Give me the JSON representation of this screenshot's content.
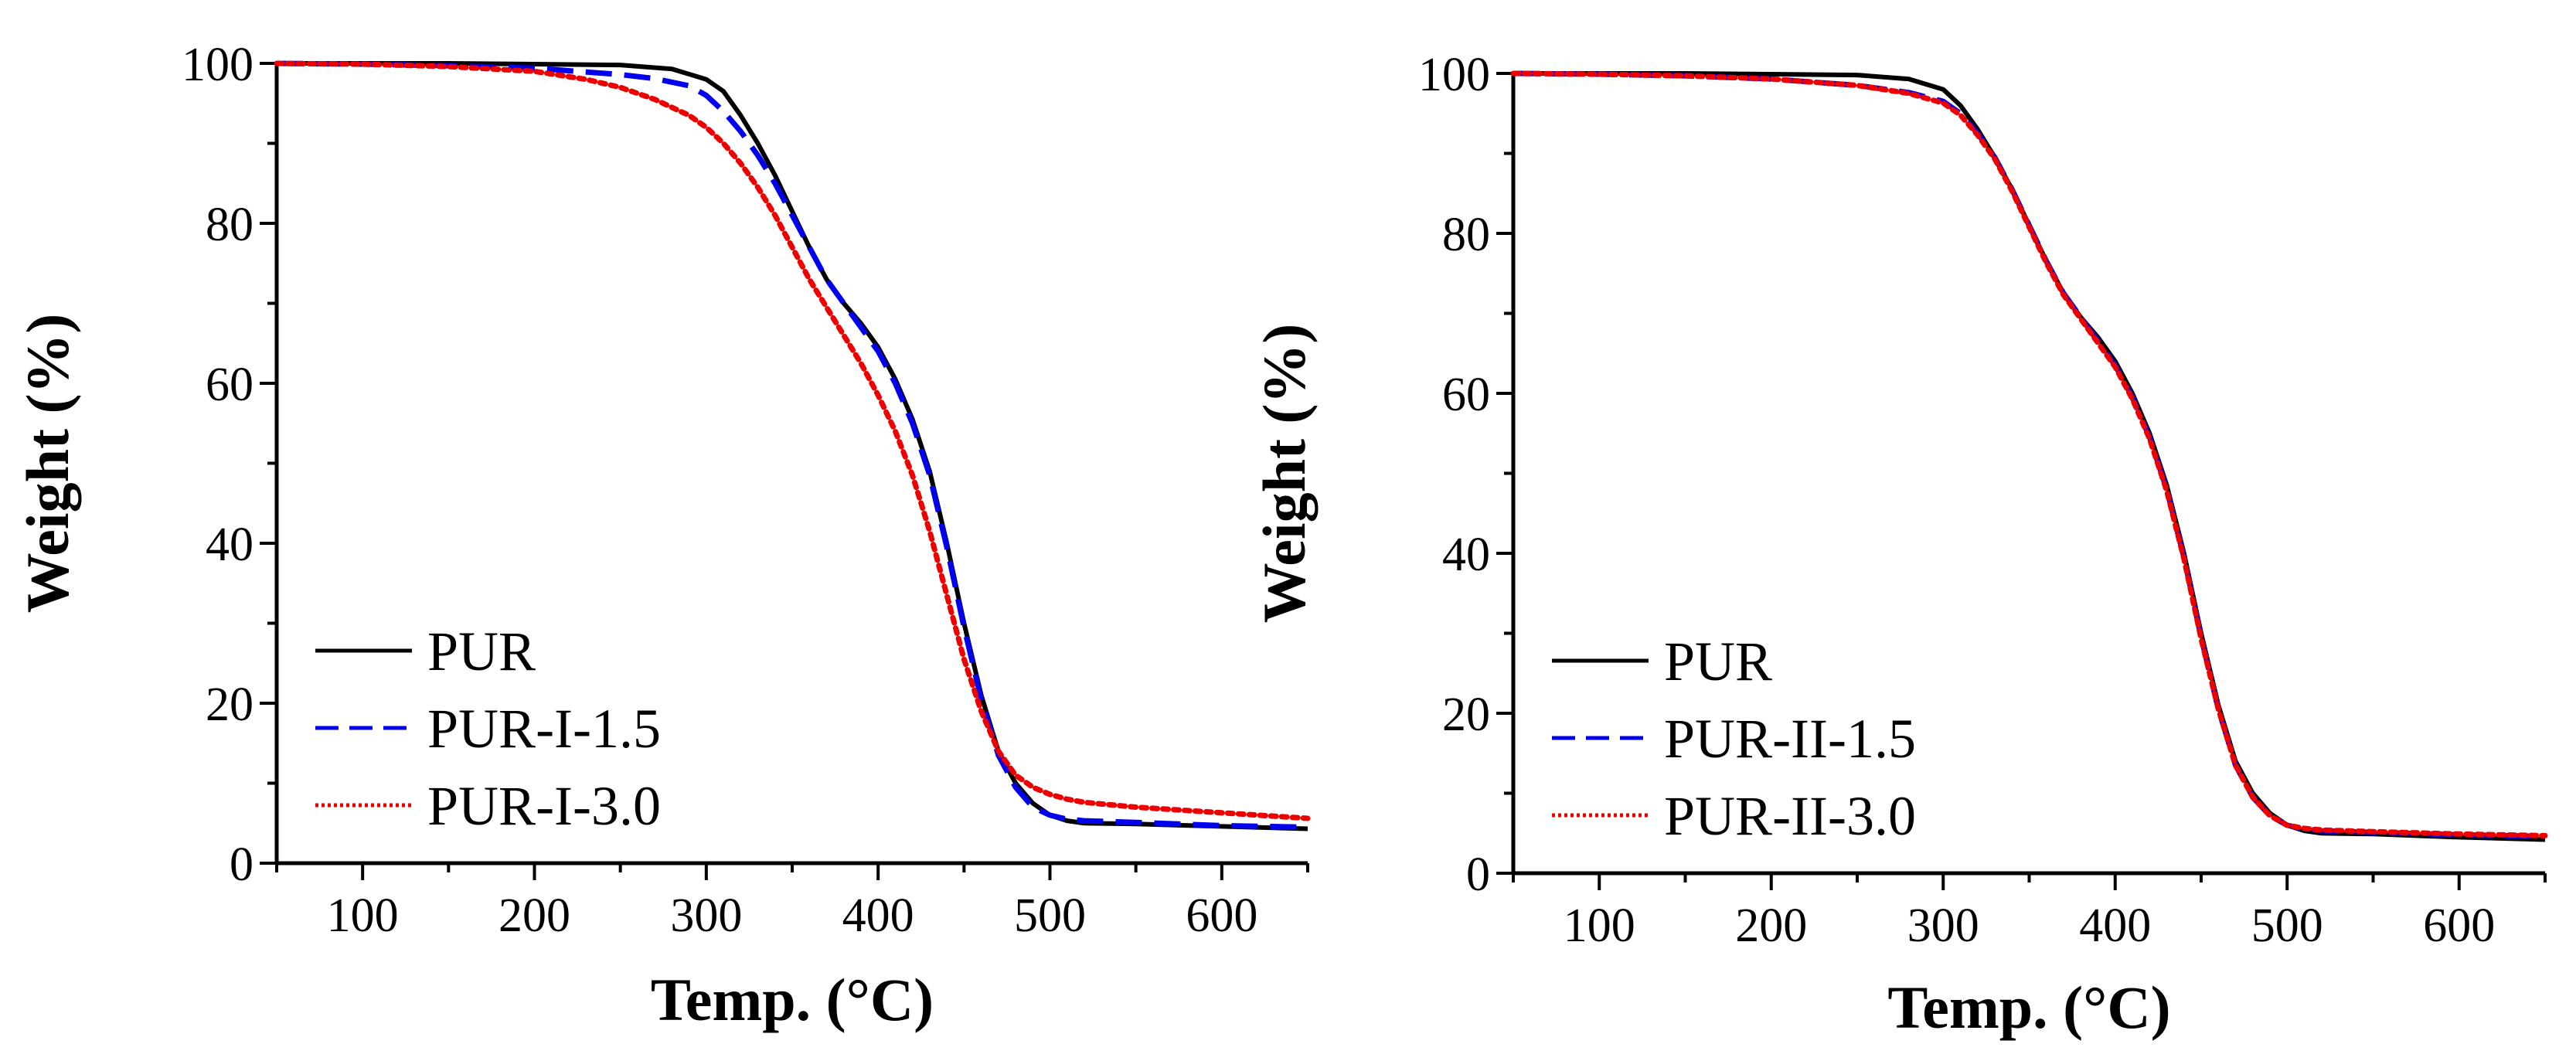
{
  "chart_data": [
    {
      "type": "line",
      "xlabel": "Temp. (°C)",
      "ylabel": "Weight (%)",
      "xlim": [
        50,
        650
      ],
      "ylim": [
        0,
        100
      ],
      "xticks": [
        100,
        200,
        300,
        400,
        500,
        600
      ],
      "yticks": [
        0,
        20,
        40,
        60,
        80,
        100
      ],
      "legend_position": "bottom-left",
      "series": [
        {
          "name": "PUR",
          "color": "#000000",
          "style": "solid",
          "x": [
            50,
            100,
            150,
            200,
            250,
            280,
            300,
            310,
            320,
            330,
            340,
            350,
            360,
            370,
            380,
            390,
            400,
            410,
            420,
            430,
            440,
            450,
            460,
            470,
            480,
            490,
            500,
            510,
            520,
            550,
            600,
            650
          ],
          "y": [
            100,
            100,
            100,
            99.9,
            99.8,
            99.3,
            98,
            96.5,
            93.5,
            90,
            86,
            81.5,
            77,
            73,
            70,
            67.5,
            64.5,
            60.5,
            55.5,
            49,
            40,
            30,
            21,
            14,
            10,
            7.5,
            6,
            5.3,
            5,
            4.9,
            4.6,
            4.3
          ]
        },
        {
          "name": "PUR-I-1.5",
          "color": "#0000ee",
          "style": "dashed",
          "x": [
            50,
            100,
            150,
            200,
            250,
            270,
            290,
            300,
            310,
            320,
            330,
            340,
            350,
            360,
            370,
            380,
            390,
            400,
            410,
            420,
            430,
            440,
            450,
            460,
            470,
            480,
            490,
            500,
            510,
            520,
            550,
            600,
            650
          ],
          "y": [
            100,
            99.9,
            99.7,
            99.4,
            98.6,
            98.1,
            97.2,
            96,
            94,
            91.5,
            88.5,
            85,
            81,
            77,
            73,
            70,
            67,
            64,
            60,
            55,
            48.5,
            39.5,
            29.5,
            20.5,
            13.5,
            9.5,
            7,
            6,
            5.5,
            5.3,
            5.1,
            4.7,
            4.5
          ]
        },
        {
          "name": "PUR-I-3.0",
          "color": "#ee0000",
          "style": "dotted",
          "x": [
            50,
            100,
            150,
            200,
            230,
            250,
            270,
            290,
            300,
            310,
            320,
            330,
            340,
            350,
            360,
            370,
            380,
            390,
            400,
            410,
            420,
            430,
            440,
            450,
            460,
            470,
            480,
            490,
            500,
            510,
            520,
            550,
            600,
            650
          ],
          "y": [
            100,
            99.9,
            99.6,
            99,
            98,
            97,
            95.5,
            93.5,
            92,
            90,
            87.5,
            84.5,
            81,
            77,
            73,
            69.5,
            66,
            62.5,
            58.5,
            54,
            48.5,
            41.5,
            33.5,
            25.5,
            19,
            14,
            11,
            9.5,
            8.6,
            8,
            7.6,
            7,
            6.3,
            5.6
          ]
        }
      ]
    },
    {
      "type": "line",
      "xlabel": "Temp. (°C)",
      "ylabel": "Weight (%)",
      "xlim": [
        50,
        650
      ],
      "ylim": [
        0,
        100
      ],
      "xticks": [
        100,
        200,
        300,
        400,
        500,
        600
      ],
      "yticks": [
        0,
        20,
        40,
        60,
        80,
        100
      ],
      "legend_position": "bottom-left",
      "series": [
        {
          "name": "PUR",
          "color": "#000000",
          "style": "solid",
          "x": [
            50,
            100,
            150,
            200,
            250,
            280,
            300,
            310,
            320,
            330,
            340,
            350,
            360,
            370,
            380,
            390,
            400,
            410,
            420,
            430,
            440,
            450,
            460,
            470,
            480,
            490,
            500,
            510,
            520,
            550,
            600,
            650
          ],
          "y": [
            100,
            100,
            100,
            99.9,
            99.8,
            99.3,
            98,
            96,
            93,
            89.5,
            85.5,
            81,
            76.5,
            72.5,
            69.5,
            67,
            64,
            60,
            55,
            48.5,
            40,
            30,
            21,
            14,
            10,
            7.5,
            6,
            5.3,
            5,
            4.9,
            4.5,
            4.2
          ]
        },
        {
          "name": "PUR-II-1.5",
          "color": "#0000ee",
          "style": "dashed",
          "x": [
            50,
            100,
            150,
            200,
            250,
            280,
            300,
            310,
            320,
            330,
            340,
            350,
            360,
            370,
            380,
            390,
            400,
            410,
            420,
            430,
            440,
            450,
            460,
            470,
            480,
            490,
            500,
            510,
            520,
            550,
            600,
            650
          ],
          "y": [
            100,
            99.9,
            99.7,
            99.3,
            98.5,
            97.6,
            96.5,
            95,
            92.5,
            89.5,
            85.5,
            81,
            76.5,
            72.5,
            69.5,
            66.5,
            63.5,
            59.5,
            54.5,
            48,
            39.5,
            29.5,
            20.5,
            13.5,
            9.5,
            7.2,
            6,
            5.5,
            5.3,
            5.1,
            4.8,
            4.6
          ]
        },
        {
          "name": "PUR-II-3.0",
          "color": "#ee0000",
          "style": "dotted",
          "x": [
            50,
            100,
            150,
            200,
            250,
            280,
            300,
            310,
            320,
            330,
            340,
            350,
            360,
            370,
            380,
            390,
            400,
            410,
            420,
            430,
            440,
            450,
            460,
            470,
            480,
            490,
            500,
            510,
            520,
            550,
            600,
            650
          ],
          "y": [
            100,
            99.9,
            99.7,
            99.3,
            98.5,
            97.5,
            96.3,
            94.8,
            92.3,
            89.3,
            85.3,
            80.8,
            76.3,
            72.3,
            69.3,
            66.3,
            63.3,
            59.3,
            54.3,
            47.8,
            39.3,
            29.3,
            20.5,
            13.5,
            9.5,
            7.2,
            6,
            5.6,
            5.4,
            5.2,
            4.9,
            4.7
          ]
        }
      ]
    }
  ]
}
